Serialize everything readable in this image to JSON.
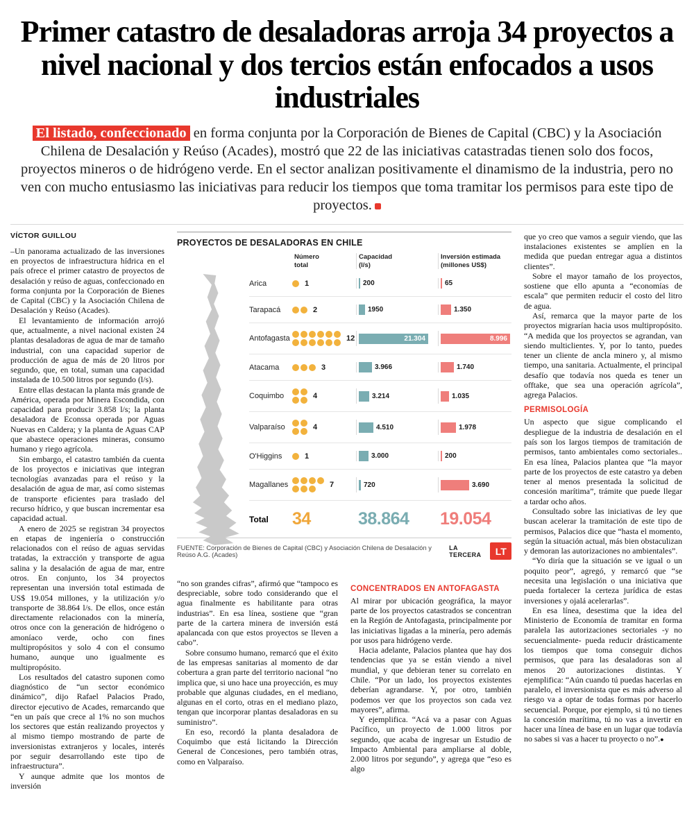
{
  "headline": "Primer catastro de desaladoras arroja 34 proyectos a nivel nacional y dos tercios están enfocados a usos industriales",
  "lede": {
    "highlight": "El listado, confeccionado",
    "body": " en forma conjunta por la Corporación de Bienes de Capital (CBC) y la Asociación Chilena de Desalación y Reúso (Acades), mostró que 22 de las iniciativas catastradas tienen solo dos focos, proyectos mineros o de hidrógeno verde. En el sector analizan positivamente el dinamismo de la industria, pero no ven con mucho entusiasmo las iniciativas para reducir los tiempos que toma tramitar los permisos para este tipo de proyectos."
  },
  "byline": "VÍCTOR GUILLOU",
  "article": {
    "left": [
      "–Un panorama actualizado de las inversiones en proyectos de infraestructura hídrica en el país ofrece el primer catastro de proyectos de desalación y reúso de aguas, confeccionado en forma conjunta por la Corporación de Bienes de Capital (CBC) y la Asociación Chilena de Desalación y Reúso (Acades).",
      "El levantamiento de información arrojó que, actualmente, a nivel nacional existen 24 plantas desaladoras de agua de mar de tamaño industrial, con una capacidad superior de producción de agua de más de 20 litros por segundo, que, en total, suman una capacidad instalada de 10.500 litros por segundo (l/s).",
      "Entre ellas destacan la planta más grande de América, operada por Minera Escondida, con capacidad para producir 3.858 l/s; la planta desaladora de Econssa operada por Aguas Nuevas en Caldera; y la planta de Aguas CAP que abastece operaciones mineras, consumo humano y riego agrícola.",
      "Sin embargo, el catastro también da cuenta de los proyectos e iniciativas que integran tecnologías avanzadas para el reúso y la desalación de agua de mar, así como sistemas de transporte eficientes para traslado del recurso hídrico, y que buscan incrementar esa capacidad actual.",
      "A enero de 2025 se registran 34 proyectos en etapas de ingeniería o construcción relacionados con el reúso de aguas servidas tratadas, la extracción y transporte de agua salina y la desalación de agua de mar, entre otros. En conjunto, los 34 proyectos representan una inversión total estimada de US$ 19.054 millones, y la utilización y/o transporte de 38.864 l/s. De ellos, once están directamente relacionados con la minería, otros once con la generación de hidrógeno o amoníaco verde, ocho con fines multipropósitos y solo 4 con el consumo humano, aunque uno igualmente es multipropósito.",
      "Los resultados del catastro suponen como diagnóstico de “un sector económico dinámico”, dijo Rafael Palacios Prado, director ejecutivo de Acades, remarcando que “en un país que crece al 1% no son muchos los sectores que están realizando proyectos y al mismo tiempo mostrando de parte de inversionistas extranjeros y locales, interés por seguir desarrollando este tipo de infraestructura”.",
      "Y aunque admite que los montos de inversión"
    ],
    "mid_a": [
      "“no son grandes cifras”, afirmó que “tampoco es despreciable, sobre todo considerando que el agua finalmente es habilitante para otras industrias”. En esa línea, sostiene que “gran parte de la cartera minera de inversión está apalancada con que estos proyectos se lleven a cabo”.",
      "Sobre consumo humano, remarcó que el éxito de las empresas sanitarias al momento de dar cobertura a gran parte del territorio nacional “no implica que, si uno hace una proyección, es muy probable que algunas ciudades, en el mediano, algunas en el corto, otras en el mediano plazo, tengan que incorporar plantas desaladoras en su suministro”.",
      "En eso, recordó la planta desaladora de Coquimbo que está licitando la Dirección General de Concesiones, pero también otras, como en Valparaíso."
    ],
    "mid_b_heading": "CONCENTRADOS EN ANTOFAGASTA",
    "mid_b": [
      "Al mirar por ubicación geográfica, la mayor parte de los proyectos catastrados se concentran en la Región de Antofagasta, principalmente por las iniciativas ligadas a la minería, pero además por usos para hidrógeno verde.",
      "Hacia adelante, Palacios plantea que hay dos tendencias que ya se están viendo a nivel mundial, y que debieran tener su correlato en Chile. “Por un lado, los proyectos existentes deberían agrandarse. Y, por otro, también podemos ver que los proyectos son cada vez mayores”, afirma.",
      "Y ejemplifica. “Acá va a pasar con Aguas Pacífico, un proyecto de 1.000 litros por segundo, que acaba de ingresar un Estudio de Impacto Ambiental para ampliarse al doble, 2.000 litros por segundo”, y agrega que “eso es algo"
    ],
    "right_a": [
      "que yo creo que vamos a seguir viendo, que las instalaciones existentes se amplíen en la medida que puedan entregar agua a distintos clientes”.",
      "Sobre el mayor tamaño de los proyectos, sostiene que ello apunta a “economías de escala” que permiten reducir el costo del litro de agua.",
      "Así, remarca que la mayor parte de los proyectos migrarían hacia usos multipropósito. “A medida que los proyectos se agrandan, van siendo multiclientes. Y, por lo tanto, puedes tener un cliente de ancla minero y, al mismo tiempo, una sanitaria. Actualmente, el principal desafío que todavía nos queda es tener un offtake, que sea una operación agrícola”, agrega Palacios."
    ],
    "right_heading": "PERMISOLOGÍA",
    "right_b": [
      "Un aspecto que sigue complicando el despliegue de la industria de desalación en el país son los largos tiempos de tramitación de permisos, tanto ambientales como sectoriales.. En esa línea, Palacios plantea que “la mayor parte de los proyectos de este catastro ya deben tener al menos presentada la solicitud de concesión marítima”, trámite que puede llegar a tardar ocho años.",
      "Consultado sobre las iniciativas de ley que buscan acelerar la tramitación de este tipo de permisos, Palacios dice que “hasta el momento, según la situación actual, más bien obstaculizan y demoran las autorizaciones no ambientales”.",
      "“Yo diría que la situación se ve igual o un poquito peor”, agregó, y remarcó que “se necesita una legislación o una iniciativa que pueda fortalecer la certeza jurídica de estas inversiones y ojalá acelerarlas”.",
      "En esa línea, desestima que la idea del Ministerio de Economía de tramitar en forma paralela las autorizaciones sectoriales -y no secuencialmente- pueda reducir drásticamente los tiempos que toma conseguir dichos permisos, que para las desaladoras son al menos 20 autorizaciones distintas. Y ejemplifica: “Aún cuando tú puedas hacerlas en paralelo, el inversionista que es más adverso al riesgo va a optar de todas formas por hacerlo secuencial. Porque, por ejemplo, si tú no tienes la concesión marítima, tú no vas a invertir en hacer una línea de base en un lugar que todavía no sabes si vas a hacer tu proyecto o no”."
    ],
    "end_mark": "●"
  },
  "chart_data": {
    "type": "bar",
    "title": "PROYECTOS DE DESALADORAS EN CHILE",
    "col_headers": [
      "Número\ntotal",
      "Capacidad\n(l/s)",
      "Inversión estimada\n(millones US$)"
    ],
    "categories": [
      "Arica",
      "Tarapacá",
      "Antofagasta",
      "Atacama",
      "Coquimbo",
      "Valparaíso",
      "O'Higgins",
      "Magallanes"
    ],
    "series": [
      {
        "name": "Número total",
        "values": [
          1,
          2,
          12,
          3,
          4,
          4,
          1,
          7
        ],
        "labels": [
          "1",
          "2",
          "12",
          "3",
          "4",
          "4",
          "1",
          "7"
        ],
        "color": "#f2b23d"
      },
      {
        "name": "Capacidad (l/s)",
        "values": [
          200,
          1950,
          21304,
          3966,
          3214,
          4510,
          3000,
          720
        ],
        "labels": [
          "200",
          "1950",
          "21.304",
          "3.966",
          "3.214",
          "4.510",
          "3.000",
          "720"
        ],
        "color": "#7aadb2"
      },
      {
        "name": "Inversión estimada (millones US$)",
        "values": [
          65,
          1350,
          8996,
          1740,
          1035,
          1978,
          200,
          3690
        ],
        "labels": [
          "65",
          "1.350",
          "8.996",
          "1.740",
          "1.035",
          "1.978",
          "200",
          "3.690"
        ],
        "color": "#ef7e7b"
      }
    ],
    "dots_per_row": [
      1,
      2,
      6,
      3,
      2,
      2,
      1,
      4
    ],
    "total": {
      "label": "Total",
      "count": "34",
      "capacity": "38.864",
      "investment": "19.054"
    },
    "source": "FUENTE: Corporación de Bienes de Capital (CBC) y Asociación Chilena de Desalación y Reúso A.G. (Acades)",
    "credit": "LA TERCERA",
    "logo": "LT",
    "grid": false,
    "legend_position": "none"
  }
}
